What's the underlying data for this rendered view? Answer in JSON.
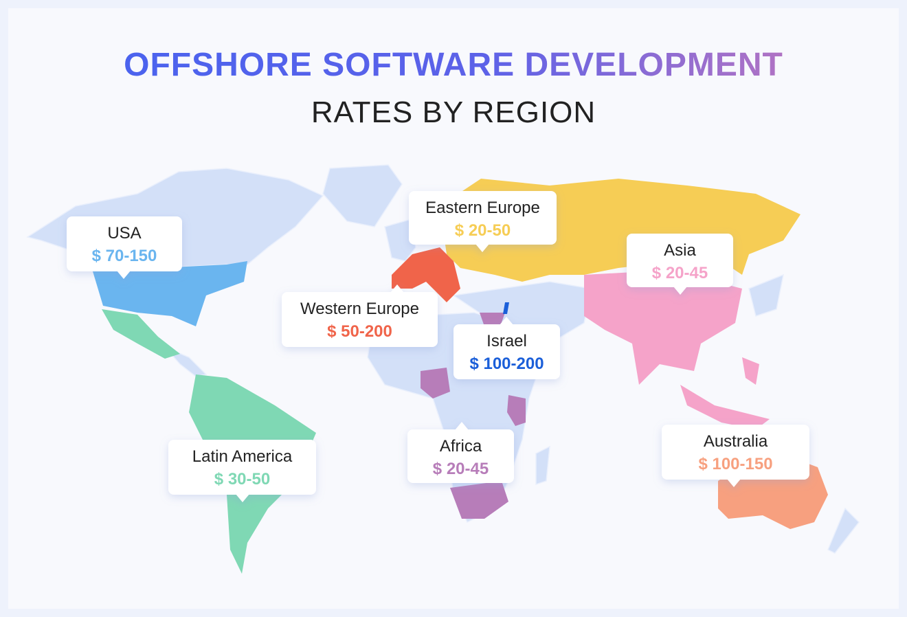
{
  "header": {
    "title": "OFFSHORE SOFTWARE DEVELOPMENT",
    "subtitle": "RATES BY REGION"
  },
  "regions": [
    {
      "label": "USA",
      "rate": "$ 70-150",
      "color": "#6ab5ef"
    },
    {
      "label": "Eastern Europe",
      "rate": "$ 20-50",
      "color": "#f6cd55"
    },
    {
      "label": "Asia",
      "rate": "$ 20-45",
      "color": "#f5a3c9"
    },
    {
      "label": "Western Europe",
      "rate": "$ 50-200",
      "color": "#f0644a"
    },
    {
      "label": "Israel",
      "rate": "$ 100-200",
      "color": "#1b5fd9"
    },
    {
      "label": "Latin America",
      "rate": "$ 30-50",
      "color": "#7fd8b4"
    },
    {
      "label": "Africa",
      "rate": "$ 20-45",
      "color": "#b77db9"
    },
    {
      "label": "Australia",
      "rate": "$ 100-150",
      "color": "#f7a07f"
    }
  ]
}
